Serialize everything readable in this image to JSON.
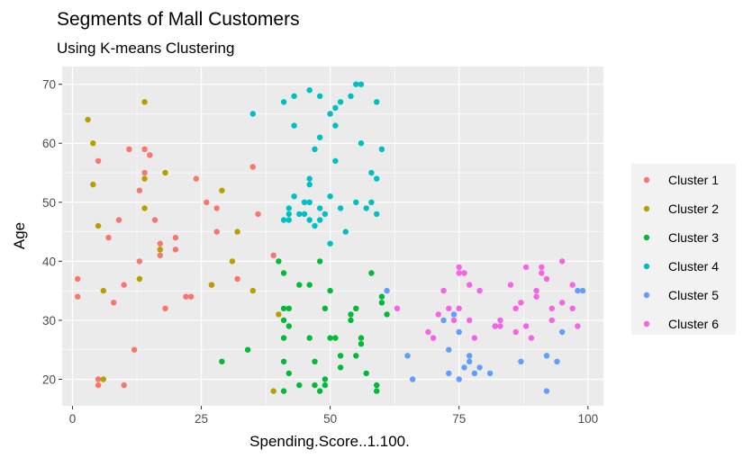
{
  "chart_data": {
    "type": "scatter",
    "title": "Segments of Mall Customers",
    "subtitle": "Using K-means Clustering",
    "xlabel": "Spending.Score..1.100.",
    "ylabel": "Age",
    "xlim": [
      -2,
      103
    ],
    "ylim": [
      15.5,
      73
    ],
    "xticks": [
      0,
      25,
      50,
      75,
      100
    ],
    "yticks": [
      20,
      30,
      40,
      50,
      60,
      70
    ],
    "grid": true,
    "legend_position": "right",
    "series": [
      {
        "name": "Cluster 1",
        "color": "#F8766D",
        "points": [
          [
            1,
            37
          ],
          [
            1,
            34
          ],
          [
            5,
            57
          ],
          [
            5,
            20
          ],
          [
            5,
            19
          ],
          [
            7,
            44
          ],
          [
            8,
            33
          ],
          [
            9,
            47
          ],
          [
            10,
            19
          ],
          [
            10,
            36
          ],
          [
            11,
            59
          ],
          [
            12,
            25
          ],
          [
            13,
            40
          ],
          [
            13,
            52
          ],
          [
            14,
            59
          ],
          [
            14,
            55
          ],
          [
            15,
            58
          ],
          [
            16,
            47
          ],
          [
            17,
            43
          ],
          [
            17,
            41
          ],
          [
            18,
            32
          ],
          [
            20,
            44
          ],
          [
            20,
            42
          ],
          [
            22,
            34
          ],
          [
            23,
            34
          ],
          [
            24,
            54
          ],
          [
            26,
            50
          ],
          [
            27,
            36
          ],
          [
            28,
            45
          ],
          [
            28,
            49
          ],
          [
            32,
            37
          ],
          [
            35,
            56
          ],
          [
            36,
            48
          ],
          [
            39,
            41
          ]
        ]
      },
      {
        "name": "Cluster 2",
        "color": "#B79F00",
        "points": [
          [
            3,
            64
          ],
          [
            4,
            60
          ],
          [
            4,
            53
          ],
          [
            5,
            46
          ],
          [
            6,
            35
          ],
          [
            6,
            20
          ],
          [
            13,
            37
          ],
          [
            14,
            67
          ],
          [
            14,
            54
          ],
          [
            14,
            49
          ],
          [
            17,
            42
          ],
          [
            18,
            55
          ],
          [
            27,
            36
          ],
          [
            29,
            52
          ],
          [
            31,
            40
          ],
          [
            32,
            45
          ],
          [
            35,
            35
          ],
          [
            39,
            18
          ],
          [
            40,
            31
          ]
        ]
      },
      {
        "name": "Cluster 3",
        "color": "#00BA38",
        "points": [
          [
            29,
            23
          ],
          [
            34,
            25
          ],
          [
            40,
            40
          ],
          [
            41,
            38
          ],
          [
            41,
            32
          ],
          [
            41,
            30
          ],
          [
            41,
            27
          ],
          [
            41,
            23
          ],
          [
            41,
            18
          ],
          [
            42,
            32
          ],
          [
            42,
            29
          ],
          [
            42,
            21
          ],
          [
            44,
            36
          ],
          [
            44,
            19
          ],
          [
            46,
            36
          ],
          [
            46,
            27
          ],
          [
            47,
            19
          ],
          [
            47,
            23
          ],
          [
            48,
            40
          ],
          [
            48,
            18
          ],
          [
            49,
            20
          ],
          [
            49,
            32
          ],
          [
            49,
            19
          ],
          [
            50,
            27
          ],
          [
            50,
            35
          ],
          [
            51,
            27
          ],
          [
            52,
            24
          ],
          [
            52,
            22
          ],
          [
            54,
            31
          ],
          [
            54,
            30
          ],
          [
            55,
            24
          ],
          [
            55,
            32
          ],
          [
            56,
            27
          ],
          [
            56,
            26
          ],
          [
            57,
            21
          ],
          [
            58,
            38
          ],
          [
            59,
            19
          ],
          [
            59,
            18
          ],
          [
            60,
            34
          ],
          [
            60,
            33
          ],
          [
            61,
            31
          ]
        ]
      },
      {
        "name": "Cluster 4",
        "color": "#00BFC4",
        "points": [
          [
            35,
            65
          ],
          [
            41,
            67
          ],
          [
            41,
            47
          ],
          [
            42,
            49
          ],
          [
            42,
            48
          ],
          [
            42,
            47
          ],
          [
            43,
            68
          ],
          [
            43,
            63
          ],
          [
            43,
            51
          ],
          [
            44,
            48
          ],
          [
            45,
            50
          ],
          [
            45,
            48
          ],
          [
            46,
            69
          ],
          [
            46,
            54
          ],
          [
            46,
            53
          ],
          [
            46,
            50
          ],
          [
            46,
            47
          ],
          [
            47,
            59
          ],
          [
            47,
            46
          ],
          [
            48,
            68
          ],
          [
            48,
            61
          ],
          [
            48,
            49
          ],
          [
            48,
            47
          ],
          [
            49,
            48
          ],
          [
            50,
            65
          ],
          [
            50,
            51
          ],
          [
            50,
            43
          ],
          [
            51,
            63
          ],
          [
            51,
            57
          ],
          [
            51,
            66
          ],
          [
            52,
            67
          ],
          [
            52,
            49
          ],
          [
            53,
            45
          ],
          [
            54,
            68
          ],
          [
            55,
            70
          ],
          [
            55,
            50
          ],
          [
            56,
            60
          ],
          [
            56,
            70
          ],
          [
            57,
            49
          ],
          [
            58,
            55
          ],
          [
            58,
            50
          ],
          [
            59,
            67
          ],
          [
            59,
            54
          ],
          [
            59,
            48
          ],
          [
            60,
            59
          ]
        ]
      },
      {
        "name": "Cluster 5",
        "color": "#619CFF",
        "points": [
          [
            61,
            35
          ],
          [
            65,
            24
          ],
          [
            66,
            20
          ],
          [
            72,
            30
          ],
          [
            73,
            21
          ],
          [
            73,
            25
          ],
          [
            74,
            31
          ],
          [
            75,
            20
          ],
          [
            75,
            28
          ],
          [
            76,
            22
          ],
          [
            77,
            23
          ],
          [
            77,
            24
          ],
          [
            78,
            21
          ],
          [
            79,
            22
          ],
          [
            81,
            21
          ],
          [
            82,
            29
          ],
          [
            87,
            23
          ],
          [
            92,
            24
          ],
          [
            92,
            18
          ],
          [
            94,
            23
          ],
          [
            95,
            28
          ],
          [
            98,
            35
          ],
          [
            99,
            35
          ]
        ]
      },
      {
        "name": "Cluster 6",
        "color": "#F564E3",
        "points": [
          [
            63,
            32
          ],
          [
            69,
            28
          ],
          [
            70,
            27
          ],
          [
            71,
            31
          ],
          [
            72,
            35
          ],
          [
            73,
            32
          ],
          [
            74,
            30
          ],
          [
            75,
            39
          ],
          [
            75,
            32
          ],
          [
            75,
            38
          ],
          [
            76,
            38
          ],
          [
            77,
            36
          ],
          [
            77,
            30
          ],
          [
            78,
            27
          ],
          [
            79,
            35
          ],
          [
            82,
            29
          ],
          [
            83,
            30
          ],
          [
            83,
            29
          ],
          [
            85,
            36
          ],
          [
            86,
            28
          ],
          [
            86,
            32
          ],
          [
            87,
            33
          ],
          [
            88,
            39
          ],
          [
            88,
            29
          ],
          [
            89,
            27
          ],
          [
            90,
            35
          ],
          [
            90,
            34
          ],
          [
            91,
            39
          ],
          [
            91,
            38
          ],
          [
            92,
            37
          ],
          [
            93,
            32
          ],
          [
            93,
            30
          ],
          [
            95,
            40
          ],
          [
            95,
            33
          ],
          [
            97,
            36
          ],
          [
            97,
            32
          ],
          [
            98,
            29
          ]
        ]
      }
    ]
  }
}
